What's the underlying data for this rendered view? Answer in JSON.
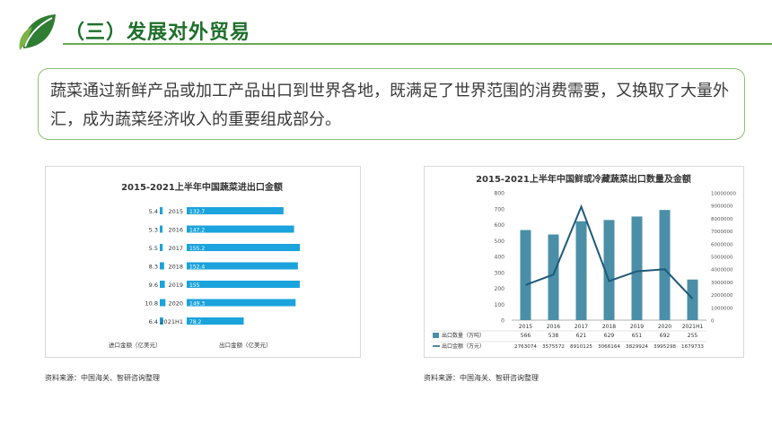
{
  "page": {
    "title": "（三）发展对外贸易",
    "intro": "蔬菜通过新鲜产品或加工产品出口到世界各地，既满足了世界范围的消费需要，又换取了大量外汇，成为蔬菜经济收入的重要组成部分。"
  },
  "colors": {
    "accent_green": "#1f6f2c",
    "bar_blue": "#1aa3dc",
    "bar_teal": "#4a8fa7",
    "line_navy": "#1f5a7a"
  },
  "chart_data": [
    {
      "type": "bar",
      "title": "2015-2021上半年中国蔬菜进出口金额",
      "categories": [
        "2015",
        "2016",
        "2017",
        "2018",
        "2019",
        "2020",
        "2021H1"
      ],
      "series": [
        {
          "name": "进口金额（亿美元）",
          "values": [
            5.4,
            5.3,
            5.5,
            8.3,
            9.6,
            10.8,
            6.4
          ]
        },
        {
          "name": "出口金额（亿美元）",
          "values": [
            132.7,
            147.2,
            155.2,
            152.4,
            155,
            149.3,
            78.2
          ]
        }
      ],
      "value_labels": {
        "import": [
          "5.4",
          "5.3",
          "5.5",
          "8.3",
          "9.6",
          "10.8",
          "6.4"
        ],
        "export": [
          "132.7",
          "147.2",
          "155.2",
          "152.4",
          "155",
          "149.3",
          "78.2"
        ]
      },
      "orientation": "horizontal",
      "legend": [
        "进口金额（亿美元）",
        "出口金额（亿美元）"
      ],
      "legend_position": "bottom",
      "source": "资料来源：中国海关、智研咨询整理"
    },
    {
      "type": "bar",
      "title": "2015-2021上半年中国鲜或冷藏蔬菜出口数量及金额",
      "categories": [
        "2015",
        "2016",
        "2017",
        "2018",
        "2019",
        "2020",
        "2021H1"
      ],
      "series": [
        {
          "name": "出口数量（万吨）",
          "type": "bar",
          "axis": "left",
          "values": [
            566,
            538,
            621,
            629,
            651,
            692,
            255
          ]
        },
        {
          "name": "出口金额（万元）",
          "type": "line",
          "axis": "right",
          "values": [
            2763074,
            3575572,
            8910125,
            3066164,
            3829924,
            3995298,
            1679733
          ]
        }
      ],
      "left_axis": {
        "ylim": [
          0,
          800
        ],
        "ticks": [
          "0",
          "100",
          "200",
          "300",
          "400",
          "500",
          "600",
          "700",
          "800"
        ]
      },
      "right_axis": {
        "ylim": [
          0,
          10000000
        ],
        "ticks": [
          "0",
          "1000000",
          "2000000",
          "3000000",
          "4000000",
          "5000000",
          "6000000",
          "7000000",
          "8000000",
          "9000000",
          "10000000"
        ]
      },
      "table_rows": {
        "quantity": [
          "566",
          "538",
          "621",
          "629",
          "651",
          "692",
          "255"
        ],
        "amount": [
          "2763074",
          "3575572",
          "8910125",
          "3066164",
          "3829924",
          "3995298",
          "1679733"
        ]
      },
      "grid": false,
      "source": "资料来源：中国海关、智研咨询整理"
    }
  ]
}
